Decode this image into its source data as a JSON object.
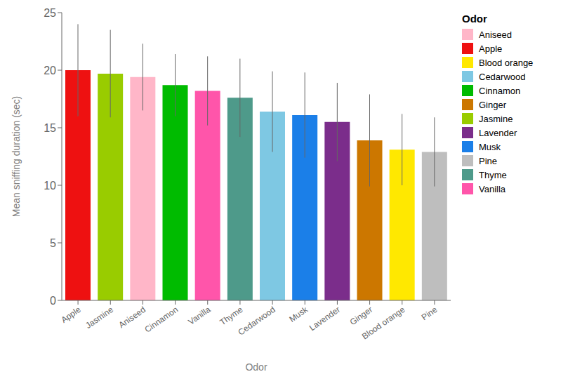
{
  "chart_data": {
    "type": "bar",
    "categories": [
      "Apple",
      "Jasmine",
      "Aniseed",
      "Cinnamon",
      "Vanilla",
      "Thyme",
      "Cedarwood",
      "Musk",
      "Lavender",
      "Ginger",
      "Blood orange",
      "Pine"
    ],
    "values": [
      20.0,
      19.7,
      19.4,
      18.7,
      18.2,
      17.6,
      16.4,
      16.1,
      15.5,
      13.9,
      13.1,
      12.9
    ],
    "errors": [
      4.0,
      3.8,
      2.9,
      2.7,
      3.0,
      3.4,
      3.5,
      3.7,
      3.4,
      4.0,
      3.1,
      3.0
    ],
    "colors": [
      "#EE1111",
      "#99CC00",
      "#FFB6C8",
      "#00BB00",
      "#FF55AA",
      "#4E9A8A",
      "#7EC8E3",
      "#1B7FE8",
      "#7B2D8B",
      "#CC7700",
      "#FFE800",
      "#BEBEBE"
    ],
    "xlabel": "Odor",
    "ylabel": "Mean sniffing duration (sec)",
    "ylim": [
      0,
      25
    ],
    "yticks": [
      0,
      5,
      10,
      15,
      20,
      25
    ],
    "grid": false,
    "legend": "right",
    "legend_title": "Odor",
    "legend_entries": [
      {
        "name": "Aniseed",
        "color": "#FFB6C8"
      },
      {
        "name": "Apple",
        "color": "#EE1111"
      },
      {
        "name": "Blood orange",
        "color": "#FFE800"
      },
      {
        "name": "Cedarwood",
        "color": "#7EC8E3"
      },
      {
        "name": "Cinnamon",
        "color": "#00BB00"
      },
      {
        "name": "Ginger",
        "color": "#CC7700"
      },
      {
        "name": "Jasmine",
        "color": "#99CC00"
      },
      {
        "name": "Lavender",
        "color": "#7B2D8B"
      },
      {
        "name": "Musk",
        "color": "#1B7FE8"
      },
      {
        "name": "Pine",
        "color": "#BEBEBE"
      },
      {
        "name": "Thyme",
        "color": "#4E9A8A"
      },
      {
        "name": "Vanilla",
        "color": "#FF55AA"
      }
    ]
  }
}
